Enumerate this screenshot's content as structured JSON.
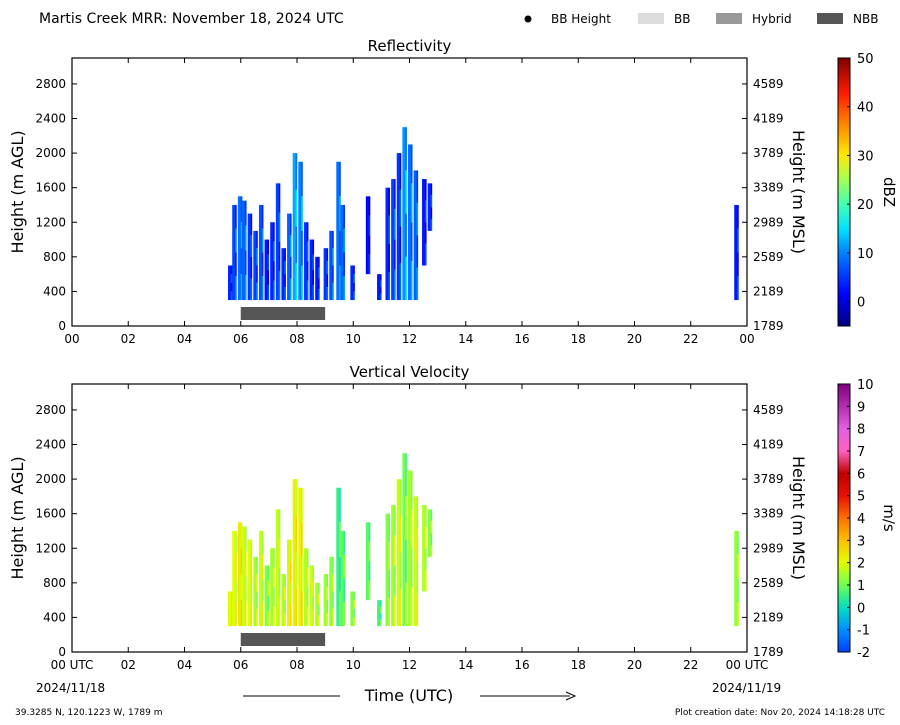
{
  "header": {
    "title": "Martis Creek MRR:  November 18, 2024 UTC",
    "legend": [
      {
        "label": "BB Height",
        "kind": "dot",
        "color": "#000000"
      },
      {
        "label": "BB",
        "kind": "swatch",
        "color": "#dcdcdc"
      },
      {
        "label": "Hybrid",
        "kind": "swatch",
        "color": "#999999"
      },
      {
        "label": "NBB",
        "kind": "swatch",
        "color": "#555555"
      }
    ]
  },
  "colors": {
    "nbb": "#555555",
    "axis": "#000000"
  },
  "footer": {
    "location": "39.3285 N, 120.1223 W, 1789 m",
    "creation": "Plot creation date: Nov 20, 2024 14:18:28 UTC",
    "start_date": "2024/11/18",
    "end_date": "2024/11/19",
    "time_label": "Time (UTC)"
  },
  "chart_data": [
    {
      "type": "heatmap",
      "title": "Reflectivity",
      "ylabel": "Height (m AGL)",
      "y2label": "Height (m MSL)",
      "xlim": [
        0,
        24
      ],
      "ylim": [
        0,
        3100
      ],
      "xticks": [
        "00",
        "02",
        "04",
        "06",
        "08",
        "10",
        "12",
        "14",
        "16",
        "18",
        "20",
        "22",
        "00"
      ],
      "yticks": [
        0,
        400,
        800,
        1200,
        1600,
        2000,
        2400,
        2800
      ],
      "y2ticks": [
        "1789",
        "2189",
        "2589",
        "2989",
        "3389",
        "3789",
        "4189",
        "4589"
      ],
      "colorbar": {
        "label": "dBZ",
        "range": [
          -5,
          50
        ],
        "ticks": [
          0,
          10,
          20,
          30,
          40,
          50
        ]
      },
      "nbb_bars": [
        {
          "start": 6.0,
          "end": 9.0
        }
      ],
      "echo_columns": [
        {
          "t": 5.6,
          "bottom": 300,
          "top": 700,
          "value": 4
        },
        {
          "t": 5.75,
          "bottom": 300,
          "top": 1400,
          "value": 6
        },
        {
          "t": 5.95,
          "bottom": 300,
          "top": 1500,
          "value": 9
        },
        {
          "t": 6.1,
          "bottom": 300,
          "top": 1450,
          "value": 8
        },
        {
          "t": 6.3,
          "bottom": 300,
          "top": 1300,
          "value": 5
        },
        {
          "t": 6.5,
          "bottom": 300,
          "top": 1100,
          "value": 6
        },
        {
          "t": 6.7,
          "bottom": 300,
          "top": 1400,
          "value": 7
        },
        {
          "t": 6.9,
          "bottom": 300,
          "top": 1000,
          "value": 3
        },
        {
          "t": 7.1,
          "bottom": 300,
          "top": 1200,
          "value": 4
        },
        {
          "t": 7.3,
          "bottom": 300,
          "top": 1650,
          "value": 6
        },
        {
          "t": 7.5,
          "bottom": 300,
          "top": 900,
          "value": 4
        },
        {
          "t": 7.7,
          "bottom": 300,
          "top": 1300,
          "value": 8
        },
        {
          "t": 7.9,
          "bottom": 300,
          "top": 2000,
          "value": 12
        },
        {
          "t": 8.1,
          "bottom": 300,
          "top": 1900,
          "value": 10
        },
        {
          "t": 8.3,
          "bottom": 300,
          "top": 1200,
          "value": 5
        },
        {
          "t": 8.5,
          "bottom": 300,
          "top": 1000,
          "value": 4
        },
        {
          "t": 8.7,
          "bottom": 300,
          "top": 800,
          "value": 3
        },
        {
          "t": 9.0,
          "bottom": 300,
          "top": 900,
          "value": 5
        },
        {
          "t": 9.2,
          "bottom": 300,
          "top": 1100,
          "value": 7
        },
        {
          "t": 9.45,
          "bottom": 300,
          "top": 1900,
          "value": 9
        },
        {
          "t": 9.6,
          "bottom": 300,
          "top": 1400,
          "value": 8
        },
        {
          "t": 9.95,
          "bottom": 300,
          "top": 700,
          "value": 4
        },
        {
          "t": 10.5,
          "bottom": 600,
          "top": 1500,
          "value": 2
        },
        {
          "t": 10.9,
          "bottom": 300,
          "top": 600,
          "value": 3
        },
        {
          "t": 11.2,
          "bottom": 300,
          "top": 1600,
          "value": 4
        },
        {
          "t": 11.4,
          "bottom": 300,
          "top": 1700,
          "value": 6
        },
        {
          "t": 11.6,
          "bottom": 300,
          "top": 2000,
          "value": 5
        },
        {
          "t": 11.8,
          "bottom": 300,
          "top": 2300,
          "value": 11
        },
        {
          "t": 12.0,
          "bottom": 300,
          "top": 2100,
          "value": 9
        },
        {
          "t": 12.2,
          "bottom": 300,
          "top": 1800,
          "value": 8
        },
        {
          "t": 12.5,
          "bottom": 700,
          "top": 1700,
          "value": 3
        },
        {
          "t": 12.7,
          "bottom": 1100,
          "top": 1650,
          "value": 4
        },
        {
          "t": 23.6,
          "bottom": 300,
          "top": 1400,
          "value": 3
        }
      ]
    },
    {
      "type": "heatmap",
      "title": "Vertical Velocity",
      "ylabel": "Height (m AGL)",
      "y2label": "Height (m MSL)",
      "xlim": [
        0,
        24
      ],
      "ylim": [
        0,
        3100
      ],
      "xticks": [
        "00 UTC",
        "02",
        "04",
        "06",
        "08",
        "10",
        "12",
        "14",
        "16",
        "18",
        "20",
        "22",
        "00 UTC"
      ],
      "yticks": [
        0,
        400,
        800,
        1200,
        1600,
        2000,
        2400,
        2800
      ],
      "y2ticks": [
        "1789",
        "2189",
        "2589",
        "2989",
        "3389",
        "3789",
        "4189",
        "4589"
      ],
      "colorbar": {
        "label": "m/s",
        "range": [
          -2,
          10
        ],
        "ticks": [
          -2,
          -1,
          0,
          1,
          2,
          3,
          4,
          5,
          6,
          7,
          8,
          9,
          10
        ]
      },
      "nbb_bars": [
        {
          "start": 6.0,
          "end": 9.0
        }
      ],
      "echo_columns": [
        {
          "t": 5.6,
          "bottom": 300,
          "top": 700,
          "value": 2
        },
        {
          "t": 5.75,
          "bottom": 300,
          "top": 1400,
          "value": 2
        },
        {
          "t": 5.95,
          "bottom": 300,
          "top": 1500,
          "value": 2.3
        },
        {
          "t": 6.1,
          "bottom": 300,
          "top": 1450,
          "value": 1.8
        },
        {
          "t": 6.3,
          "bottom": 300,
          "top": 1300,
          "value": 2
        },
        {
          "t": 6.5,
          "bottom": 300,
          "top": 1100,
          "value": 1.5
        },
        {
          "t": 6.7,
          "bottom": 300,
          "top": 1400,
          "value": 1.8
        },
        {
          "t": 6.9,
          "bottom": 300,
          "top": 1000,
          "value": 1.2
        },
        {
          "t": 7.1,
          "bottom": 300,
          "top": 1200,
          "value": 1.5
        },
        {
          "t": 7.3,
          "bottom": 300,
          "top": 1650,
          "value": 1.7
        },
        {
          "t": 7.5,
          "bottom": 300,
          "top": 900,
          "value": 1.6
        },
        {
          "t": 7.7,
          "bottom": 300,
          "top": 1300,
          "value": 2.2
        },
        {
          "t": 7.9,
          "bottom": 300,
          "top": 2000,
          "value": 2.2
        },
        {
          "t": 8.1,
          "bottom": 300,
          "top": 1900,
          "value": 2.2
        },
        {
          "t": 8.3,
          "bottom": 300,
          "top": 1200,
          "value": 1.6
        },
        {
          "t": 8.5,
          "bottom": 300,
          "top": 1000,
          "value": 1.8
        },
        {
          "t": 8.7,
          "bottom": 300,
          "top": 800,
          "value": 1.5
        },
        {
          "t": 9.0,
          "bottom": 300,
          "top": 900,
          "value": 1.4
        },
        {
          "t": 9.2,
          "bottom": 300,
          "top": 1100,
          "value": 1.3
        },
        {
          "t": 9.45,
          "bottom": 300,
          "top": 1900,
          "value": 0.5
        },
        {
          "t": 9.6,
          "bottom": 300,
          "top": 1400,
          "value": 0.8
        },
        {
          "t": 9.95,
          "bottom": 300,
          "top": 700,
          "value": 1.2
        },
        {
          "t": 10.5,
          "bottom": 600,
          "top": 1500,
          "value": 0.8
        },
        {
          "t": 10.9,
          "bottom": 300,
          "top": 600,
          "value": 0.6
        },
        {
          "t": 11.2,
          "bottom": 300,
          "top": 1600,
          "value": 1.2
        },
        {
          "t": 11.4,
          "bottom": 300,
          "top": 1700,
          "value": 1.5
        },
        {
          "t": 11.6,
          "bottom": 300,
          "top": 2000,
          "value": 1.8
        },
        {
          "t": 11.8,
          "bottom": 300,
          "top": 2300,
          "value": 1.0
        },
        {
          "t": 12.0,
          "bottom": 300,
          "top": 2100,
          "value": 1.5
        },
        {
          "t": 12.2,
          "bottom": 300,
          "top": 1800,
          "value": 1.8
        },
        {
          "t": 12.5,
          "bottom": 700,
          "top": 1700,
          "value": 1.6
        },
        {
          "t": 12.7,
          "bottom": 1100,
          "top": 1650,
          "value": 1.2
        },
        {
          "t": 23.6,
          "bottom": 300,
          "top": 1400,
          "value": 1.3
        }
      ]
    }
  ]
}
